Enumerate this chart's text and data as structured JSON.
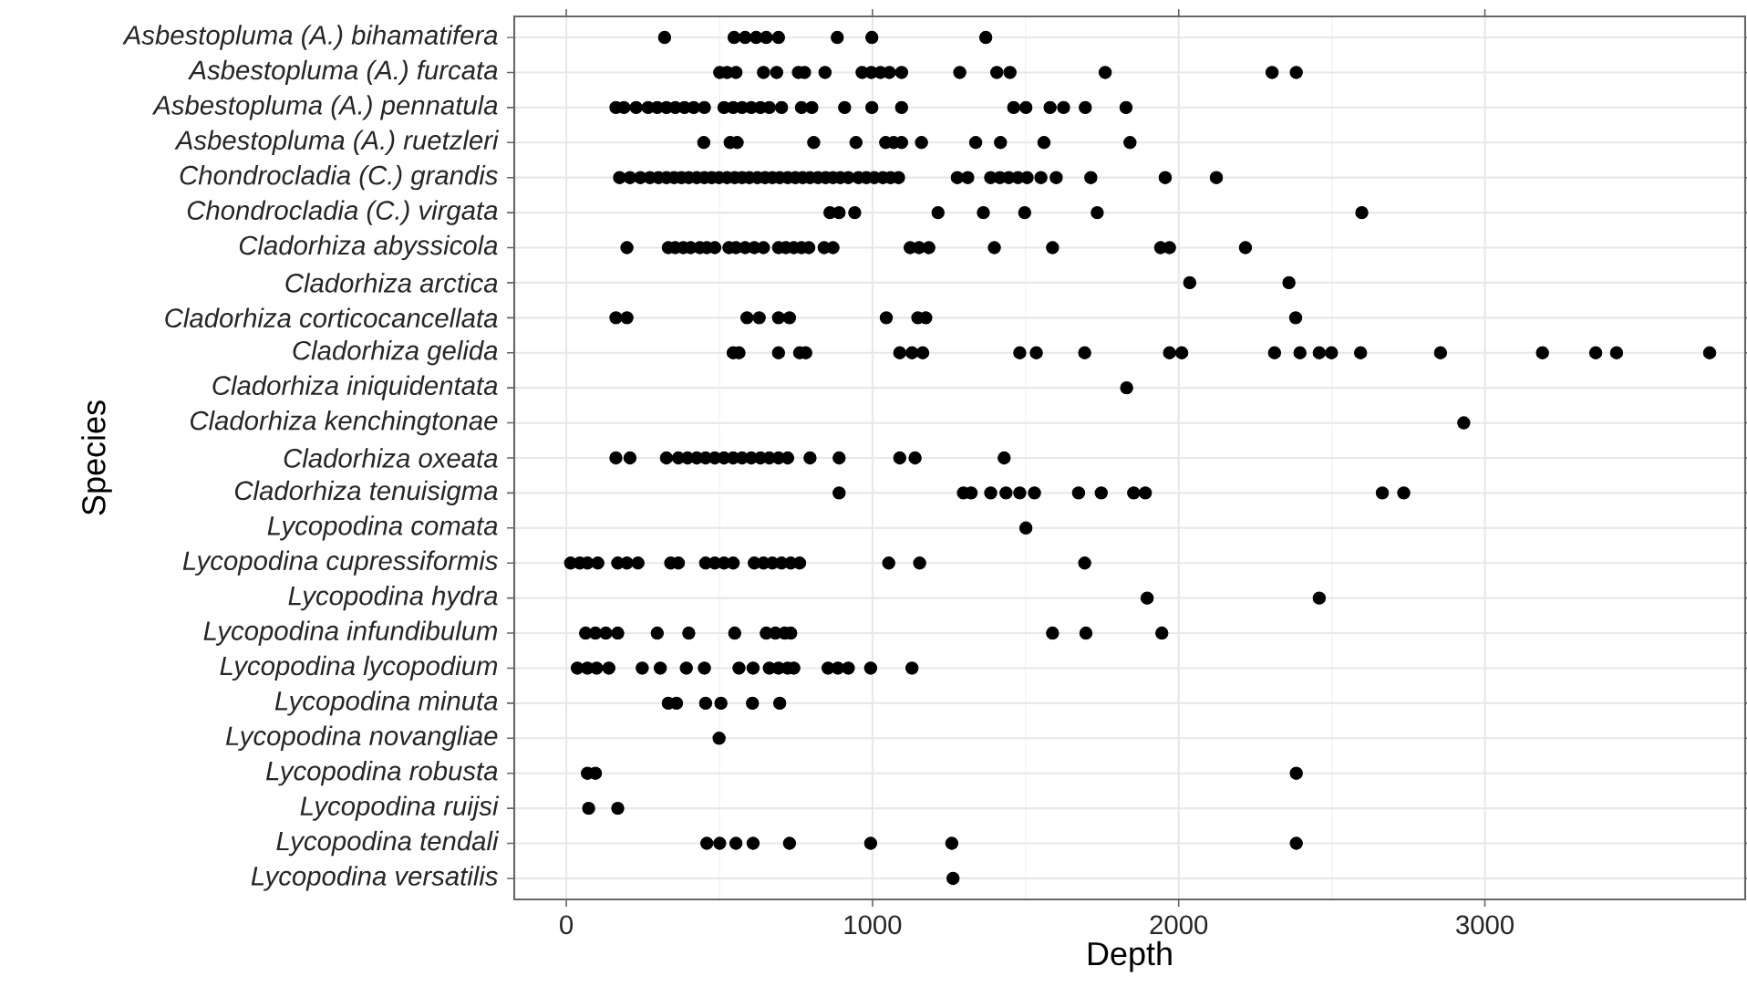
{
  "chart_data": {
    "type": "scatter",
    "orientation": "horizontal",
    "xlabel": "Depth",
    "ylabel": "Species",
    "categories": [
      "Asbestopluma (A.) bihamatifera",
      "Asbestopluma (A.) furcata",
      "Asbestopluma (A.) pennatula",
      "Asbestopluma (A.) ruetzleri",
      "Chondrocladia (C.) grandis",
      "Chondrocladia (C.) virgata",
      "Cladorhiza abyssicola",
      "Cladorhiza arctica",
      "Cladorhiza corticocancellata",
      "Cladorhiza gelida",
      "Cladorhiza iniquidentata",
      "Cladorhiza kenchingtonae",
      "Cladorhiza oxeata",
      "Cladorhiza tenuisigma",
      "Lycopodina comata",
      "Lycopodina cupressiformis",
      "Lycopodina hydra",
      "Lycopodina infundibulum",
      "Lycopodina lycopodium",
      "Lycopodina minuta",
      "Lycopodina novangliae",
      "Lycopodina robusta",
      "Lycopodina ruijsi",
      "Lycopodina tendali",
      "Lycopodina versatilis"
    ],
    "xlim": [
      -170,
      3850
    ],
    "xticks": [
      0,
      1000,
      2000,
      3000
    ],
    "grid": true,
    "marker": "circle",
    "series": [
      {
        "color": "#000000",
        "x": [
          "Asbestopluma (A.) bihamatifera",
          "Asbestopluma (A.) bihamatifera",
          "Asbestopluma (A.) bihamatifera",
          "Asbestopluma (A.) bihamatifera",
          "Asbestopluma (A.) bihamatifera",
          "Asbestopluma (A.) bihamatifera",
          "Asbestopluma (A.) bihamatifera",
          "Asbestopluma (A.) bihamatifera",
          "Asbestopluma (A.) bihamatifera"
        ],
        "values": [
          321,
          548,
          584,
          620,
          653,
          693,
          885,
          998,
          1370
        ]
      },
      {
        "color": "#000000",
        "x": [
          "Asbestopluma (A.) furcata",
          "Asbestopluma (A.) furcata",
          "Asbestopluma (A.) furcata",
          "Asbestopluma (A.) furcata",
          "Asbestopluma (A.) furcata",
          "Asbestopluma (A.) furcata",
          "Asbestopluma (A.) furcata",
          "Asbestopluma (A.) furcata",
          "Asbestopluma (A.) furcata",
          "Asbestopluma (A.) furcata",
          "Asbestopluma (A.) furcata",
          "Asbestopluma (A.) furcata",
          "Asbestopluma (A.) furcata",
          "Asbestopluma (A.) furcata",
          "Asbestopluma (A.) furcata",
          "Asbestopluma (A.) furcata",
          "Asbestopluma (A.) furcata",
          "Asbestopluma (A.) furcata",
          "Asbestopluma (A.) furcata"
        ],
        "values": [
          501,
          525,
          554,
          644,
          687,
          758,
          778,
          845,
          966,
          996,
          1026,
          1055,
          1095,
          1285,
          1406,
          1449,
          1760,
          2305,
          2384
        ]
      },
      {
        "color": "#000000",
        "x": [
          "Asbestopluma (A.) pennatula",
          "Asbestopluma (A.) pennatula",
          "Asbestopluma (A.) pennatula",
          "Asbestopluma (A.) pennatula",
          "Asbestopluma (A.) pennatula",
          "Asbestopluma (A.) pennatula",
          "Asbestopluma (A.) pennatula",
          "Asbestopluma (A.) pennatula",
          "Asbestopluma (A.) pennatula",
          "Asbestopluma (A.) pennatula",
          "Asbestopluma (A.) pennatula",
          "Asbestopluma (A.) pennatula",
          "Asbestopluma (A.) pennatula",
          "Asbestopluma (A.) pennatula",
          "Asbestopluma (A.) pennatula",
          "Asbestopluma (A.) pennatula",
          "Asbestopluma (A.) pennatula",
          "Asbestopluma (A.) pennatula",
          "Asbestopluma (A.) pennatula",
          "Asbestopluma (A.) pennatula",
          "Asbestopluma (A.) pennatula",
          "Asbestopluma (A.) pennatula",
          "Asbestopluma (A.) pennatula",
          "Asbestopluma (A.) pennatula",
          "Asbestopluma (A.) pennatula",
          "Asbestopluma (A.) pennatula",
          "Asbestopluma (A.) pennatula",
          "Asbestopluma (A.) pennatula"
        ],
        "values": [
          162,
          188,
          228,
          267,
          297,
          327,
          356,
          386,
          416,
          451,
          515,
          545,
          574,
          604,
          634,
          663,
          703,
          768,
          802,
          909,
          998,
          1095,
          1461,
          1501,
          1580,
          1624,
          1695,
          1828
        ]
      },
      {
        "color": "#000000",
        "x": [
          "Asbestopluma (A.) ruetzleri",
          "Asbestopluma (A.) ruetzleri",
          "Asbestopluma (A.) ruetzleri",
          "Asbestopluma (A.) ruetzleri",
          "Asbestopluma (A.) ruetzleri",
          "Asbestopluma (A.) ruetzleri",
          "Asbestopluma (A.) ruetzleri",
          "Asbestopluma (A.) ruetzleri",
          "Asbestopluma (A.) ruetzleri",
          "Asbestopluma (A.) ruetzleri",
          "Asbestopluma (A.) ruetzleri",
          "Asbestopluma (A.) ruetzleri",
          "Asbestopluma (A.) ruetzleri"
        ],
        "values": [
          449,
          535,
          558,
          808,
          946,
          1043,
          1069,
          1095,
          1160,
          1337,
          1418,
          1560,
          1841
        ]
      },
      {
        "color": "#000000",
        "x": [
          "Chondrocladia (C.) grandis",
          "Chondrocladia (C.) grandis",
          "Chondrocladia (C.) grandis",
          "Chondrocladia (C.) grandis",
          "Chondrocladia (C.) grandis",
          "Chondrocladia (C.) grandis",
          "Chondrocladia (C.) grandis",
          "Chondrocladia (C.) grandis",
          "Chondrocladia (C.) grandis",
          "Chondrocladia (C.) grandis",
          "Chondrocladia (C.) grandis",
          "Chondrocladia (C.) grandis",
          "Chondrocladia (C.) grandis",
          "Chondrocladia (C.) grandis",
          "Chondrocladia (C.) grandis",
          "Chondrocladia (C.) grandis",
          "Chondrocladia (C.) grandis",
          "Chondrocladia (C.) grandis",
          "Chondrocladia (C.) grandis",
          "Chondrocladia (C.) grandis",
          "Chondrocladia (C.) grandis",
          "Chondrocladia (C.) grandis",
          "Chondrocladia (C.) grandis",
          "Chondrocladia (C.) grandis",
          "Chondrocladia (C.) grandis",
          "Chondrocladia (C.) grandis",
          "Chondrocladia (C.) grandis",
          "Chondrocladia (C.) grandis",
          "Chondrocladia (C.) grandis",
          "Chondrocladia (C.) grandis",
          "Chondrocladia (C.) grandis",
          "Chondrocladia (C.) grandis",
          "Chondrocladia (C.) grandis",
          "Chondrocladia (C.) grandis",
          "Chondrocladia (C.) grandis",
          "Chondrocladia (C.) grandis",
          "Chondrocladia (C.) grandis",
          "Chondrocladia (C.) grandis",
          "Chondrocladia (C.) grandis",
          "Chondrocladia (C.) grandis",
          "Chondrocladia (C.) grandis",
          "Chondrocladia (C.) grandis",
          "Chondrocladia (C.) grandis",
          "Chondrocladia (C.) grandis",
          "Chondrocladia (C.) grandis",
          "Chondrocladia (C.) grandis",
          "Chondrocladia (C.) grandis",
          "Chondrocladia (C.) grandis"
        ],
        "values": [
          174,
          208,
          242,
          273,
          301,
          327,
          352,
          376,
          400,
          426,
          451,
          475,
          499,
          525,
          550,
          574,
          598,
          624,
          649,
          673,
          697,
          723,
          748,
          772,
          796,
          822,
          847,
          871,
          895,
          921,
          954,
          980,
          1006,
          1034,
          1059,
          1085,
          1277,
          1311,
          1386,
          1416,
          1445,
          1475,
          1505,
          1550,
          1600,
          1713,
          1956,
          2123
        ]
      },
      {
        "color": "#000000",
        "x": [
          "Chondrocladia (C.) virgata",
          "Chondrocladia (C.) virgata",
          "Chondrocladia (C.) virgata",
          "Chondrocladia (C.) virgata",
          "Chondrocladia (C.) virgata",
          "Chondrocladia (C.) virgata",
          "Chondrocladia (C.) virgata",
          "Chondrocladia (C.) virgata"
        ],
        "values": [
          861,
          891,
          942,
          1214,
          1362,
          1497,
          1734,
          2598
        ]
      },
      {
        "color": "#000000",
        "x": [
          "Cladorhiza abyssicola",
          "Cladorhiza abyssicola",
          "Cladorhiza abyssicola",
          "Cladorhiza abyssicola",
          "Cladorhiza abyssicola",
          "Cladorhiza abyssicola",
          "Cladorhiza abyssicola",
          "Cladorhiza abyssicola",
          "Cladorhiza abyssicola",
          "Cladorhiza abyssicola",
          "Cladorhiza abyssicola",
          "Cladorhiza abyssicola",
          "Cladorhiza abyssicola",
          "Cladorhiza abyssicola",
          "Cladorhiza abyssicola",
          "Cladorhiza abyssicola",
          "Cladorhiza abyssicola",
          "Cladorhiza abyssicola",
          "Cladorhiza abyssicola",
          "Cladorhiza abyssicola",
          "Cladorhiza abyssicola",
          "Cladorhiza abyssicola",
          "Cladorhiza abyssicola",
          "Cladorhiza abyssicola",
          "Cladorhiza abyssicola",
          "Cladorhiza abyssicola",
          "Cladorhiza abyssicola",
          "Cladorhiza abyssicola"
        ],
        "values": [
          198,
          333,
          356,
          382,
          406,
          436,
          459,
          485,
          531,
          554,
          584,
          614,
          644,
          693,
          717,
          743,
          768,
          792,
          842,
          871,
          1123,
          1152,
          1184,
          1398,
          1588,
          1941,
          1970,
          2218
        ]
      },
      {
        "color": "#000000",
        "x": [
          "Cladorhiza arctica",
          "Cladorhiza arctica"
        ],
        "values": [
          2036,
          2360
        ]
      },
      {
        "color": "#000000",
        "x": [
          "Cladorhiza corticocancellata",
          "Cladorhiza corticocancellata",
          "Cladorhiza corticocancellata",
          "Cladorhiza corticocancellata",
          "Cladorhiza corticocancellata",
          "Cladorhiza corticocancellata",
          "Cladorhiza corticocancellata",
          "Cladorhiza corticocancellata",
          "Cladorhiza corticocancellata",
          "Cladorhiza corticocancellata"
        ],
        "values": [
          162,
          198,
          590,
          630,
          693,
          729,
          1045,
          1148,
          1174,
          2382
        ]
      },
      {
        "color": "#000000",
        "x": [
          "Cladorhiza gelida",
          "Cladorhiza gelida",
          "Cladorhiza gelida",
          "Cladorhiza gelida",
          "Cladorhiza gelida",
          "Cladorhiza gelida",
          "Cladorhiza gelida",
          "Cladorhiza gelida",
          "Cladorhiza gelida",
          "Cladorhiza gelida",
          "Cladorhiza gelida",
          "Cladorhiza gelida",
          "Cladorhiza gelida",
          "Cladorhiza gelida",
          "Cladorhiza gelida",
          "Cladorhiza gelida",
          "Cladorhiza gelida",
          "Cladorhiza gelida",
          "Cladorhiza gelida",
          "Cladorhiza gelida",
          "Cladorhiza gelida",
          "Cladorhiza gelida",
          "Cladorhiza gelida"
        ],
        "values": [
          545,
          564,
          693,
          762,
          782,
          1089,
          1129,
          1164,
          1481,
          1535,
          1693,
          1970,
          2010,
          2313,
          2396,
          2459,
          2499,
          2594,
          2855,
          3188,
          3362,
          3430,
          3734
        ]
      },
      {
        "color": "#000000",
        "x": [
          "Cladorhiza iniquidentata"
        ],
        "values": [
          1830
        ]
      },
      {
        "color": "#000000",
        "x": [
          "Cladorhiza kenchingtonae"
        ],
        "values": [
          2931
        ]
      },
      {
        "color": "#000000",
        "x": [
          "Cladorhiza oxeata",
          "Cladorhiza oxeata",
          "Cladorhiza oxeata",
          "Cladorhiza oxeata",
          "Cladorhiza oxeata",
          "Cladorhiza oxeata",
          "Cladorhiza oxeata",
          "Cladorhiza oxeata",
          "Cladorhiza oxeata",
          "Cladorhiza oxeata",
          "Cladorhiza oxeata",
          "Cladorhiza oxeata",
          "Cladorhiza oxeata",
          "Cladorhiza oxeata",
          "Cladorhiza oxeata",
          "Cladorhiza oxeata",
          "Cladorhiza oxeata",
          "Cladorhiza oxeata",
          "Cladorhiza oxeata",
          "Cladorhiza oxeata",
          "Cladorhiza oxeata"
        ],
        "values": [
          162,
          208,
          327,
          366,
          396,
          426,
          455,
          485,
          515,
          545,
          574,
          604,
          634,
          663,
          693,
          723,
          796,
          891,
          1089,
          1139,
          1430
        ]
      },
      {
        "color": "#000000",
        "x": [
          "Cladorhiza tenuisigma",
          "Cladorhiza tenuisigma",
          "Cladorhiza tenuisigma",
          "Cladorhiza tenuisigma",
          "Cladorhiza tenuisigma",
          "Cladorhiza tenuisigma",
          "Cladorhiza tenuisigma",
          "Cladorhiza tenuisigma",
          "Cladorhiza tenuisigma",
          "Cladorhiza tenuisigma",
          "Cladorhiza tenuisigma",
          "Cladorhiza tenuisigma",
          "Cladorhiza tenuisigma"
        ],
        "values": [
          891,
          1297,
          1322,
          1386,
          1436,
          1481,
          1529,
          1673,
          1747,
          1853,
          1891,
          2665,
          2735
        ]
      },
      {
        "color": "#000000",
        "x": [
          "Lycopodina comata"
        ],
        "values": [
          1501
        ]
      },
      {
        "color": "#000000",
        "x": [
          "Lycopodina cupressiformis",
          "Lycopodina cupressiformis",
          "Lycopodina cupressiformis",
          "Lycopodina cupressiformis",
          "Lycopodina cupressiformis",
          "Lycopodina cupressiformis",
          "Lycopodina cupressiformis",
          "Lycopodina cupressiformis",
          "Lycopodina cupressiformis",
          "Lycopodina cupressiformis",
          "Lycopodina cupressiformis",
          "Lycopodina cupressiformis",
          "Lycopodina cupressiformis",
          "Lycopodina cupressiformis",
          "Lycopodina cupressiformis",
          "Lycopodina cupressiformis",
          "Lycopodina cupressiformis",
          "Lycopodina cupressiformis",
          "Lycopodina cupressiformis",
          "Lycopodina cupressiformis",
          "Lycopodina cupressiformis",
          "Lycopodina cupressiformis"
        ],
        "values": [
          14,
          44,
          69,
          103,
          168,
          198,
          234,
          341,
          366,
          455,
          485,
          515,
          545,
          614,
          644,
          673,
          703,
          733,
          762,
          1053,
          1154,
          1693
        ]
      },
      {
        "color": "#000000",
        "x": [
          "Lycopodina hydra",
          "Lycopodina hydra"
        ],
        "values": [
          1897,
          2459
        ]
      },
      {
        "color": "#000000",
        "x": [
          "Lycopodina infundibulum",
          "Lycopodina infundibulum",
          "Lycopodina infundibulum",
          "Lycopodina infundibulum",
          "Lycopodina infundibulum",
          "Lycopodina infundibulum",
          "Lycopodina infundibulum",
          "Lycopodina infundibulum",
          "Lycopodina infundibulum",
          "Lycopodina infundibulum",
          "Lycopodina infundibulum",
          "Lycopodina infundibulum",
          "Lycopodina infundibulum",
          "Lycopodina infundibulum"
        ],
        "values": [
          63,
          95,
          129,
          168,
          297,
          400,
          550,
          653,
          683,
          713,
          733,
          1588,
          1697,
          1945
        ]
      },
      {
        "color": "#000000",
        "x": [
          "Lycopodina lycopodium",
          "Lycopodina lycopodium",
          "Lycopodina lycopodium",
          "Lycopodina lycopodium",
          "Lycopodina lycopodium",
          "Lycopodina lycopodium",
          "Lycopodina lycopodium",
          "Lycopodina lycopodium",
          "Lycopodina lycopodium",
          "Lycopodina lycopodium",
          "Lycopodina lycopodium",
          "Lycopodina lycopodium",
          "Lycopodina lycopodium",
          "Lycopodina lycopodium",
          "Lycopodina lycopodium",
          "Lycopodina lycopodium",
          "Lycopodina lycopodium",
          "Lycopodina lycopodium",
          "Lycopodina lycopodium",
          "Lycopodina lycopodium"
        ],
        "values": [
          36,
          69,
          99,
          139,
          248,
          307,
          392,
          451,
          564,
          610,
          663,
          693,
          723,
          743,
          855,
          887,
          921,
          994,
          null,
          1129
        ]
      },
      {
        "color": "#000000",
        "x": [
          "Lycopodina minuta",
          "Lycopodina minuta",
          "Lycopodina minuta",
          "Lycopodina minuta",
          "Lycopodina minuta",
          "Lycopodina minuta"
        ],
        "values": [
          333,
          360,
          455,
          505,
          608,
          697
        ]
      },
      {
        "color": "#000000",
        "x": [
          "Lycopodina novangliae"
        ],
        "values": [
          499
        ]
      },
      {
        "color": "#000000",
        "x": [
          "Lycopodina robusta",
          "Lycopodina robusta",
          "Lycopodina robusta"
        ],
        "values": [
          69,
          95,
          2384
        ]
      },
      {
        "color": "#000000",
        "x": [
          "Lycopodina ruijsi",
          "Lycopodina ruijsi"
        ],
        "values": [
          73,
          168
        ]
      },
      {
        "color": "#000000",
        "x": [
          "Lycopodina tendali",
          "Lycopodina tendali",
          "Lycopodina tendali",
          "Lycopodina tendali",
          "Lycopodina tendali",
          "Lycopodina tendali",
          "Lycopodina tendali",
          "Lycopodina tendali",
          "Lycopodina tendali"
        ],
        "values": [
          459,
          501,
          554,
          610,
          729,
          null,
          994,
          1259,
          2384
        ]
      },
      {
        "color": "#000000",
        "x": [
          "Lycopodina versatilis"
        ],
        "values": [
          1263
        ]
      }
    ]
  }
}
